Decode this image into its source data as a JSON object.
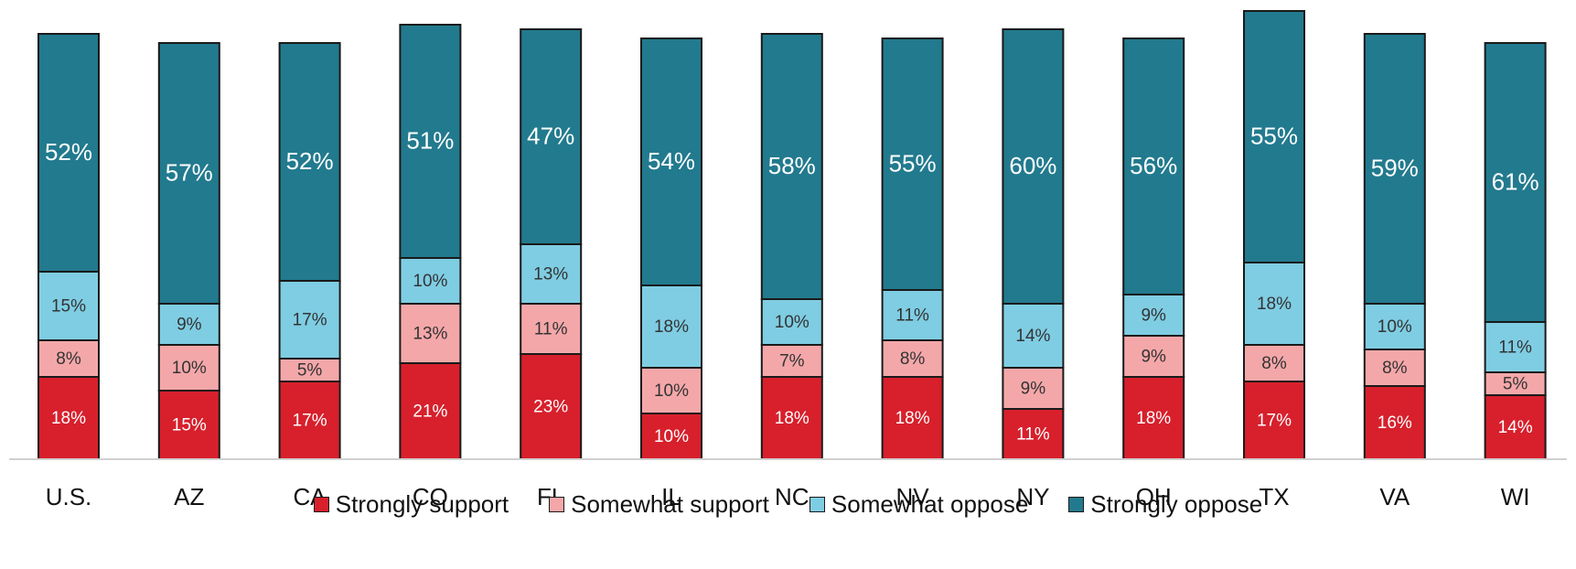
{
  "chart_data": {
    "type": "bar",
    "stacked": true,
    "categories": [
      "U.S.",
      "AZ",
      "CA",
      "CO",
      "FL",
      "IL",
      "NC",
      "NV",
      "NY",
      "OH",
      "TX",
      "VA",
      "WI"
    ],
    "series": [
      {
        "name": "Strongly support",
        "color": "#d7202c",
        "label_color": "#ffffff",
        "values": [
          18,
          15,
          17,
          21,
          23,
          10,
          18,
          18,
          11,
          18,
          17,
          16,
          14
        ],
        "labels": [
          "18%",
          "15%",
          "17%",
          "21%",
          "23%",
          "10%",
          "18%",
          "18%",
          "11%",
          "18%",
          "17%",
          "16%",
          "14%"
        ]
      },
      {
        "name": "Somewhat support",
        "color": "#f4a7a9",
        "label_color": "#333333",
        "values": [
          8,
          10,
          5,
          13,
          11,
          10,
          7,
          8,
          9,
          9,
          8,
          8,
          5
        ],
        "labels": [
          "8%",
          "10%",
          "5%",
          "13%",
          "11%",
          "10%",
          "7%",
          "8%",
          "9%",
          "9%",
          "8%",
          "8%",
          "5%"
        ]
      },
      {
        "name": "Somewhat oppose",
        "color": "#7fcde3",
        "label_color": "#333333",
        "values": [
          15,
          9,
          17,
          10,
          13,
          18,
          10,
          11,
          14,
          9,
          18,
          10,
          11
        ],
        "labels": [
          "15%",
          "9%",
          "17%",
          "10%",
          "13%",
          "18%",
          "10%",
          "11%",
          "14%",
          "9%",
          "18%",
          "10%",
          "11%"
        ]
      },
      {
        "name": "Strongly oppose",
        "color": "#227a8e",
        "label_color": "#ffffff",
        "values": [
          52,
          57,
          52,
          51,
          47,
          54,
          58,
          55,
          60,
          56,
          55,
          59,
          61
        ],
        "labels": [
          "52%",
          "57%",
          "52%",
          "51%",
          "47%",
          "54%",
          "58%",
          "55%",
          "60%",
          "56%",
          "55%",
          "59%",
          "61%"
        ]
      }
    ],
    "ylim": [
      0,
      96
    ],
    "grid": false,
    "legend_position": "bottom"
  }
}
